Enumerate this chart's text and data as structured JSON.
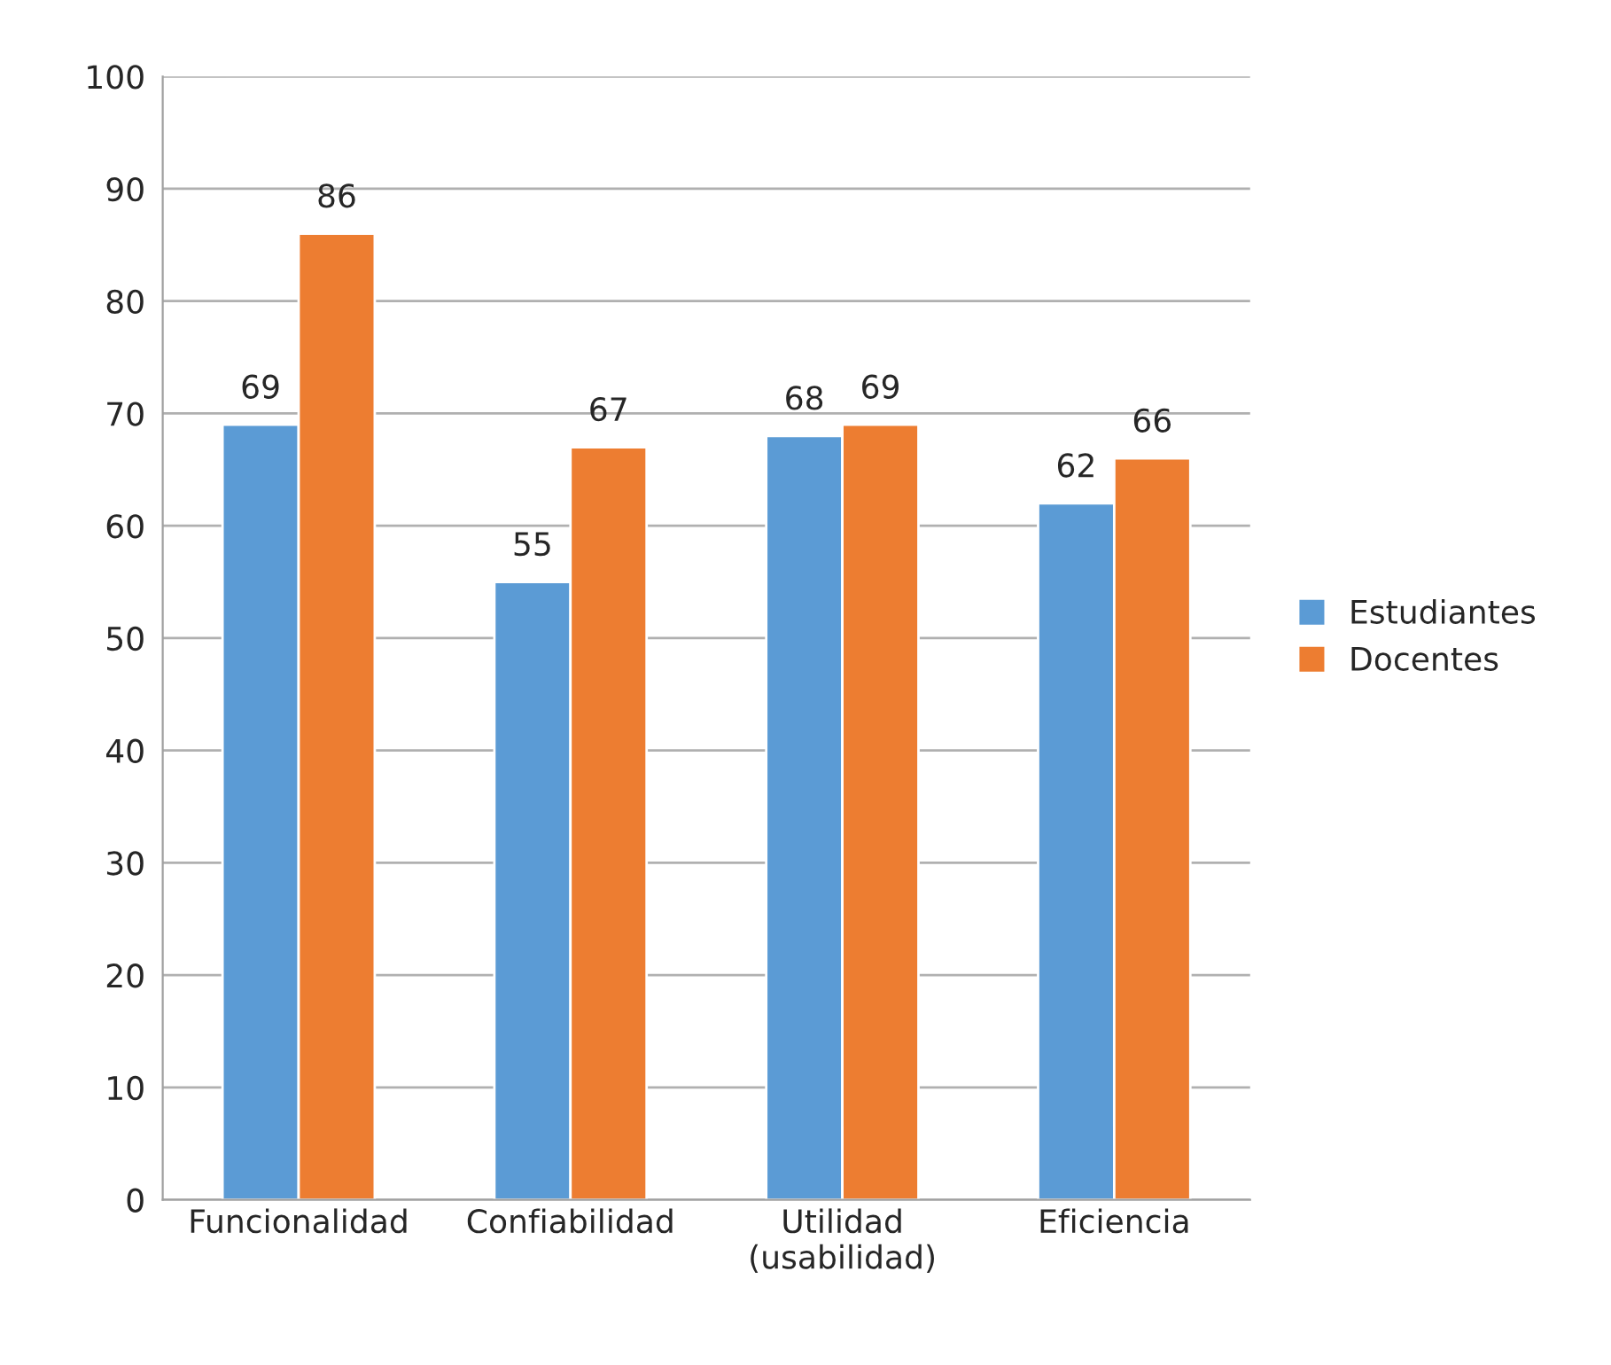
{
  "chart_data": {
    "type": "bar",
    "categories": [
      "Funcionalidad",
      "Confiabilidad",
      "Utilidad\n(usabilidad)",
      "Eficiencia"
    ],
    "series": [
      {
        "name": "Estudiantes",
        "color": "#5b9bd5",
        "values": [
          69,
          55,
          68,
          62
        ]
      },
      {
        "name": "Docentes",
        "color": "#ed7d31",
        "values": [
          86,
          67,
          69,
          66
        ]
      }
    ],
    "ylim": [
      0,
      100
    ],
    "yticks": [
      0,
      10,
      20,
      30,
      40,
      50,
      60,
      70,
      80,
      90,
      100
    ],
    "grid": "y",
    "legend": "right",
    "data_labels": true
  }
}
